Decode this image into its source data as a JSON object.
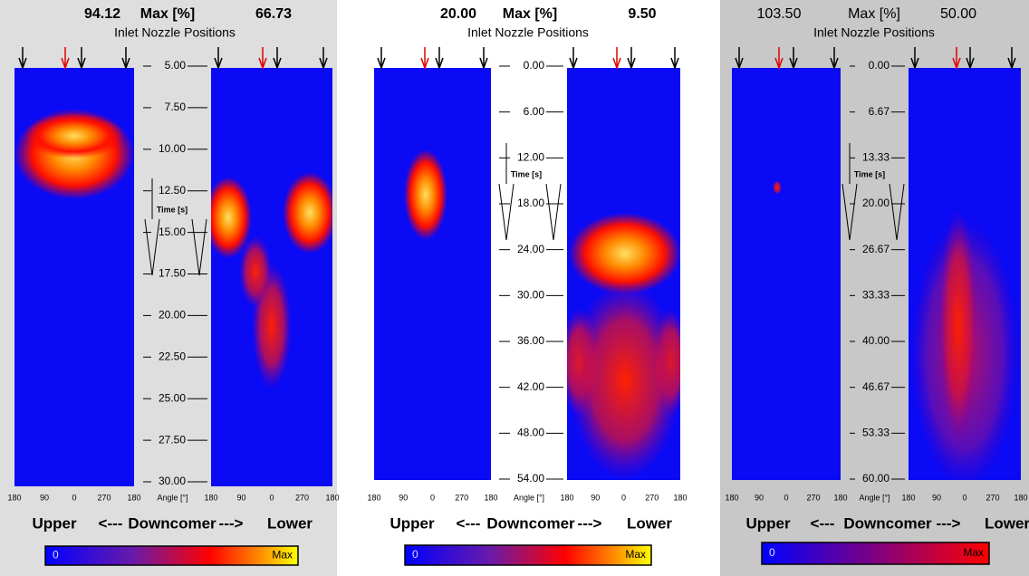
{
  "panels": [
    {
      "max_left": "94.12",
      "max_label": "Max [%]",
      "max_right": "66.73",
      "nozzle_title": "Inlet Nozzle Positions",
      "time_ticks": [
        "5.00",
        "7.50",
        "10.00",
        "12.50",
        "15.00",
        "17.50",
        "20.00",
        "22.50",
        "25.00",
        "27.50",
        "30.00"
      ],
      "time_label": "Time [s]",
      "angle_ticks_left": [
        "180",
        "90",
        "0",
        "270",
        "180"
      ],
      "angle_label": "Angle [°]",
      "angle_ticks_right": [
        "180",
        "90",
        "0",
        "270",
        "180"
      ],
      "footer": {
        "upper": "Upper",
        "arrow_left": "<---",
        "middle": "Downcomer",
        "arrow_right": "--->",
        "lower": "Lower"
      },
      "scale_min": "0",
      "scale_max": "Max"
    },
    {
      "max_left": "20.00",
      "max_label": "Max [%]",
      "max_right": "9.50",
      "nozzle_title": "Inlet Nozzle Positions",
      "time_ticks": [
        "0.00",
        "6.00",
        "12.00",
        "18.00",
        "24.00",
        "30.00",
        "36.00",
        "42.00",
        "48.00",
        "54.00"
      ],
      "time_label": "Time [s]",
      "angle_ticks_left": [
        "180",
        "90",
        "0",
        "270",
        "180"
      ],
      "angle_label": "Angle [°]",
      "angle_ticks_right": [
        "180",
        "90",
        "0",
        "270",
        "180"
      ],
      "footer": {
        "upper": "Upper",
        "arrow_left": "<---",
        "middle": "Downcomer",
        "arrow_right": "--->",
        "lower": "Lower"
      },
      "scale_min": "0",
      "scale_max": "Max"
    },
    {
      "max_left": "103.50",
      "max_label": "Max [%]",
      "max_right": "50.00",
      "nozzle_title": "Inlet Nozzle Positions",
      "time_ticks": [
        "0.00",
        "6.67",
        "13.33",
        "20.00",
        "26.67",
        "33.33",
        "40.00",
        "46.67",
        "53.33",
        "60.00"
      ],
      "time_label": "Time [s]",
      "angle_ticks_left": [
        "180",
        "90",
        "0",
        "270",
        "180"
      ],
      "angle_label": "Angle [°]",
      "angle_ticks_right": [
        "180",
        "90",
        "0",
        "270",
        "180"
      ],
      "footer": {
        "upper": "Upper",
        "arrow_left": "<---",
        "middle": "Downcomer",
        "arrow_right": "--->",
        "lower": "Lower"
      },
      "scale_min": "0",
      "scale_max": "Max"
    }
  ]
}
